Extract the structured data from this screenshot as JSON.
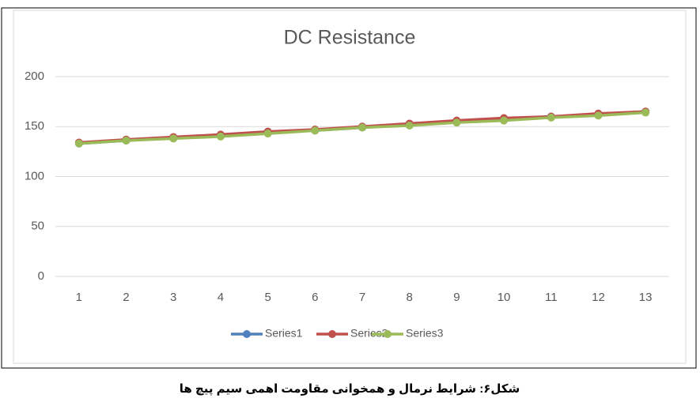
{
  "chart_data": {
    "type": "line",
    "title": "DC Resistance",
    "categories": [
      1,
      2,
      3,
      4,
      5,
      6,
      7,
      8,
      9,
      10,
      11,
      12,
      13
    ],
    "series": [
      {
        "name": "Series1",
        "color": "#4f81bd",
        "values": [
          133,
          136,
          139,
          141,
          144,
          146,
          149,
          152,
          155,
          158,
          160,
          162,
          165
        ]
      },
      {
        "name": "Series2",
        "color": "#c0504d",
        "values": [
          134,
          137,
          139.5,
          142,
          145,
          147,
          150,
          153,
          156,
          158.5,
          160,
          163,
          165
        ]
      },
      {
        "name": "Series3",
        "color": "#9bbb59",
        "values": [
          133,
          136,
          138,
          140,
          143,
          146,
          149,
          151,
          154,
          156,
          159,
          161,
          164
        ]
      }
    ],
    "ylim": [
      0,
      200
    ],
    "yticks": [
      0,
      50,
      100,
      150,
      200
    ],
    "grid": true,
    "legend": "bottom"
  },
  "caption": "شکل۶: شرایط نرمال و همخوانی مقاومت اهمی سیم پیچ ها"
}
